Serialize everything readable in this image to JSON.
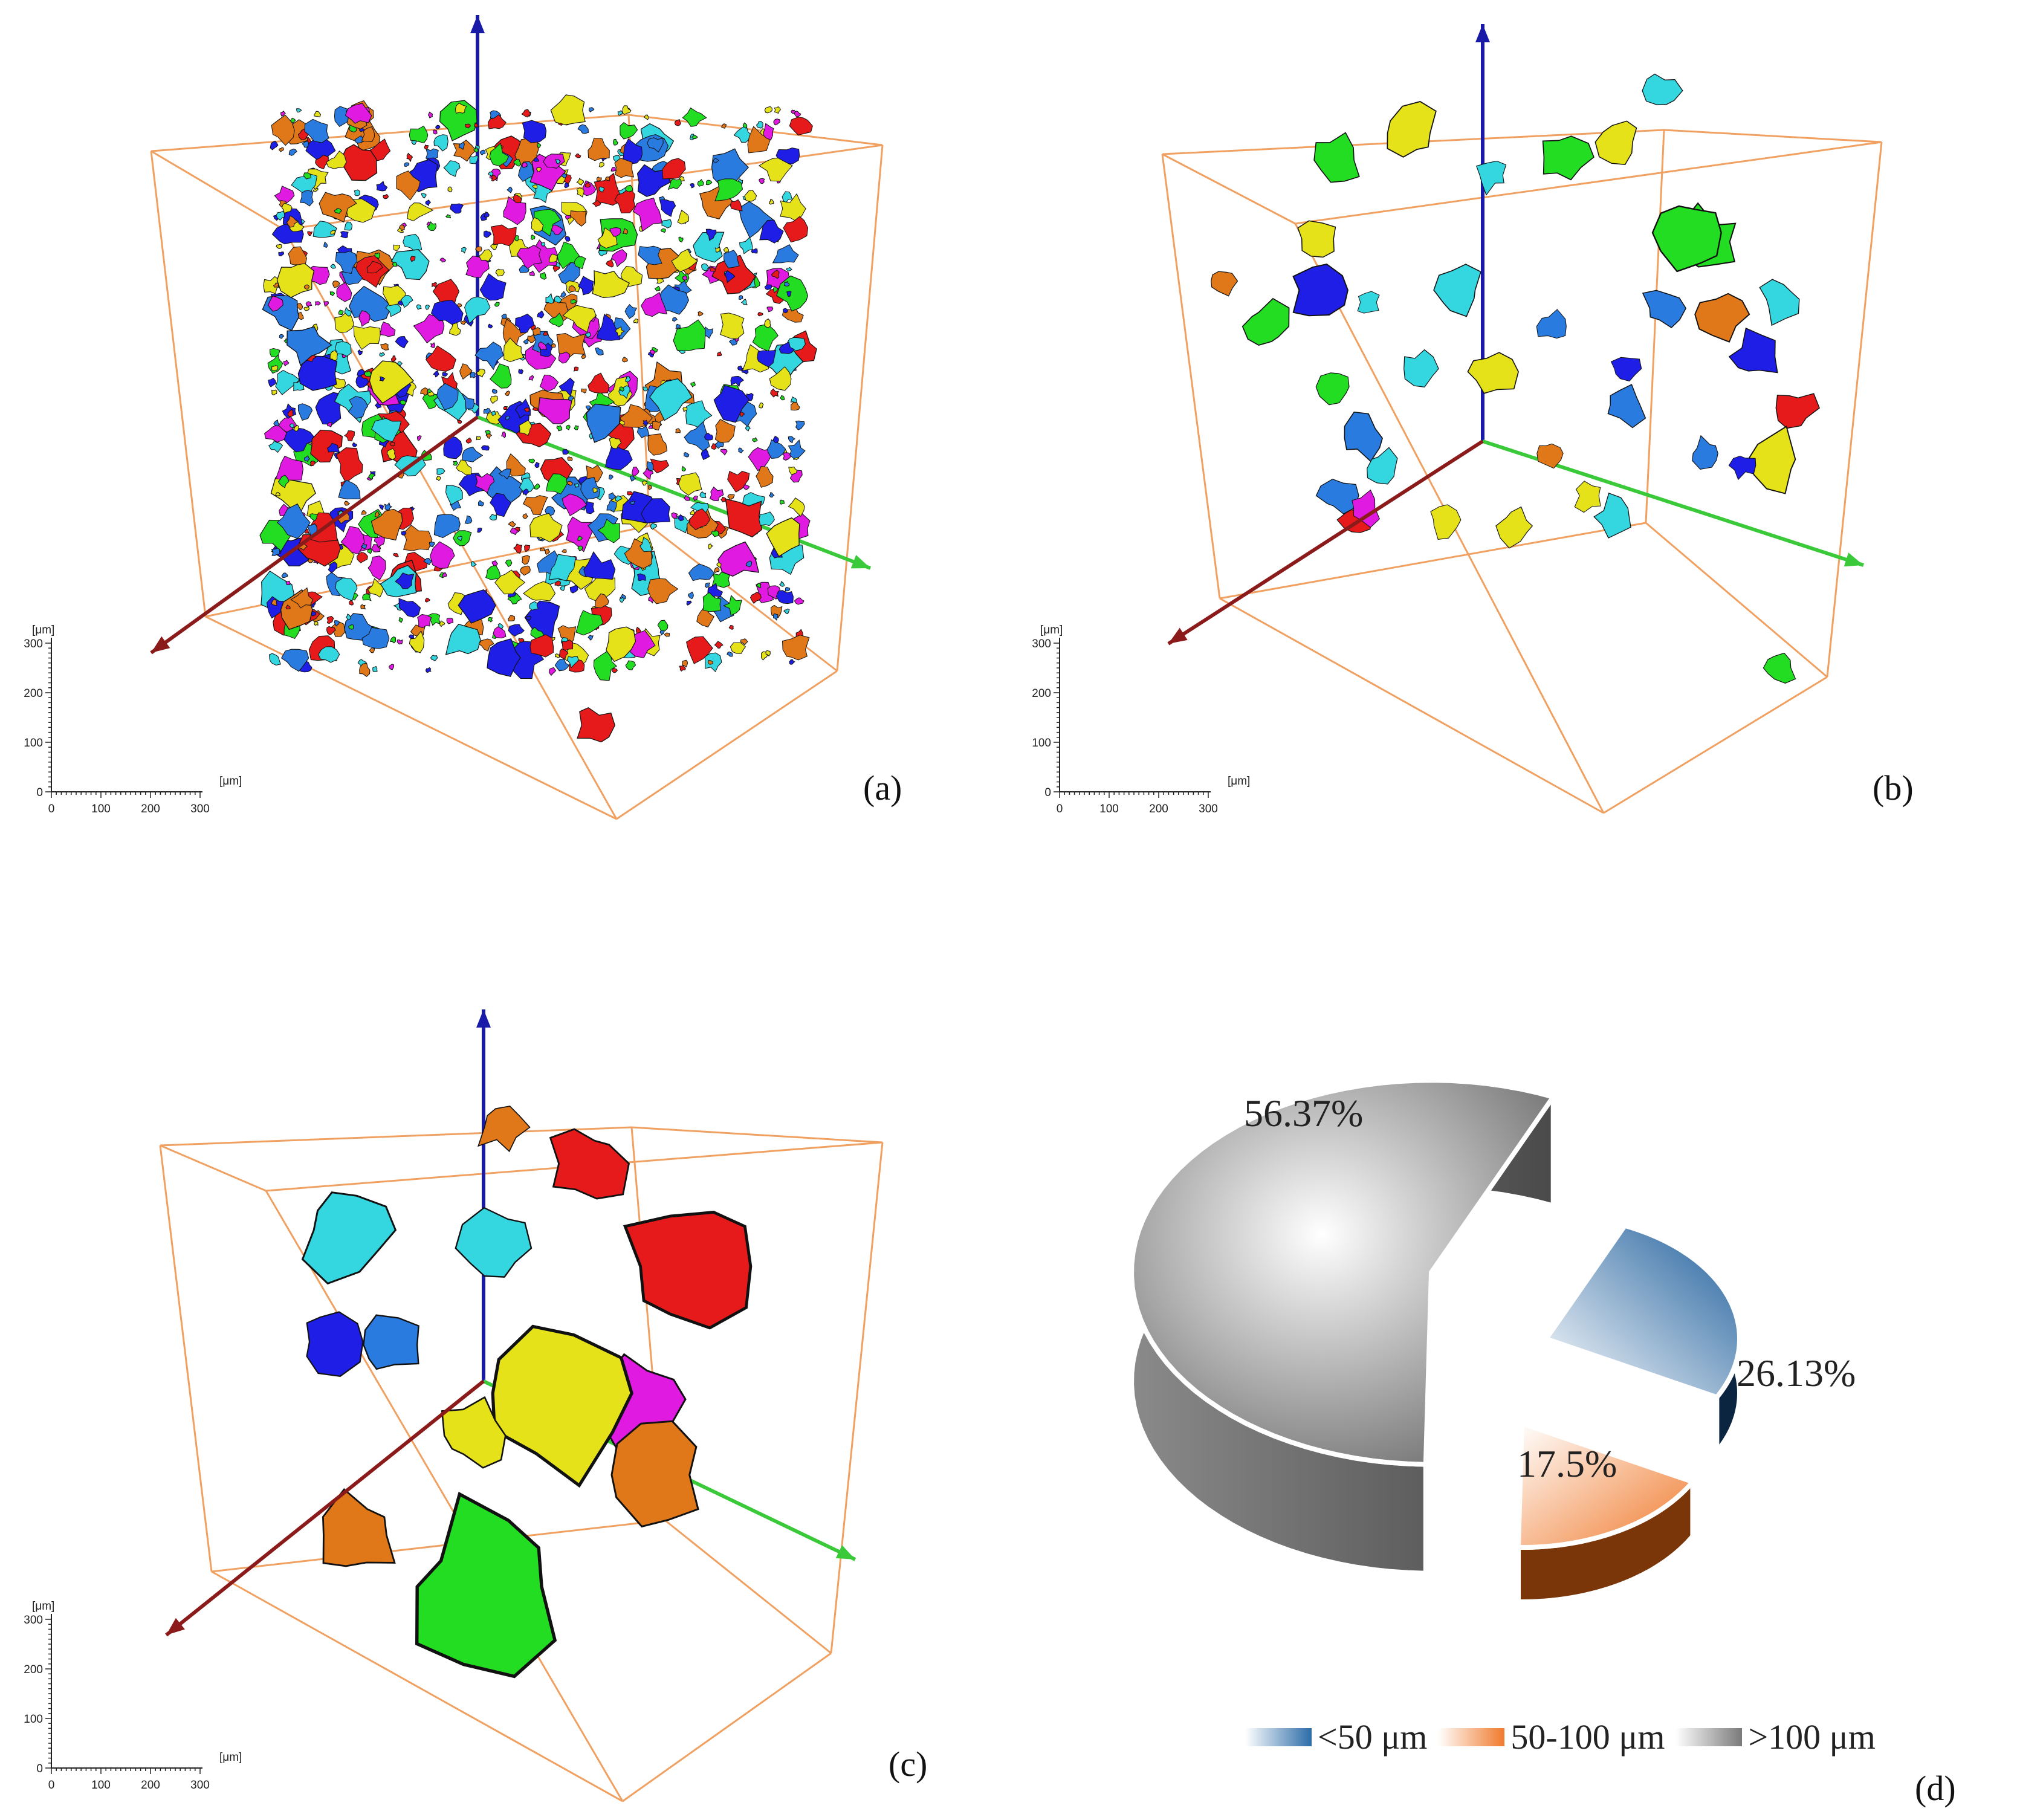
{
  "panels": [
    {
      "label": "(a)",
      "density": "all particles"
    },
    {
      "label": "(b)"
    },
    {
      "label": "(c)"
    },
    {
      "label": "(d)"
    }
  ],
  "scale_bar": {
    "unit_label": "[μm]",
    "vertical_ticks": [
      "300",
      "200",
      "100",
      "0"
    ],
    "horizontal_ticks": [
      "0",
      "100",
      "200",
      "300"
    ]
  },
  "colors": {
    "box_edge": "#f0a060",
    "z_axis": "#1a1aa8",
    "y_axis": "#39c939",
    "x_axis": "#8b1a1a",
    "particles": [
      "#1e1ee6",
      "#34d6e0",
      "#e6e21a",
      "#22dd22",
      "#e61a1a",
      "#e01ae0",
      "#2a7be0",
      "#e0781a"
    ]
  },
  "chart_data": {
    "type": "pie",
    "style": "3d-exploded",
    "slices": [
      {
        "label": "<50 μm",
        "value": 26.13,
        "display": "26.13%",
        "color": "#2b6ca8"
      },
      {
        "label": "50-100 μm",
        "value": 17.5,
        "display": "17.5%",
        "color": "#f07a2c"
      },
      {
        "label": ">100 μm",
        "value": 56.37,
        "display": "56.37%",
        "color": "#8a8a8a"
      }
    ],
    "legend": [
      "<50 μm",
      "50-100 μm",
      ">100 μm"
    ],
    "legend_placement": "bottom"
  }
}
